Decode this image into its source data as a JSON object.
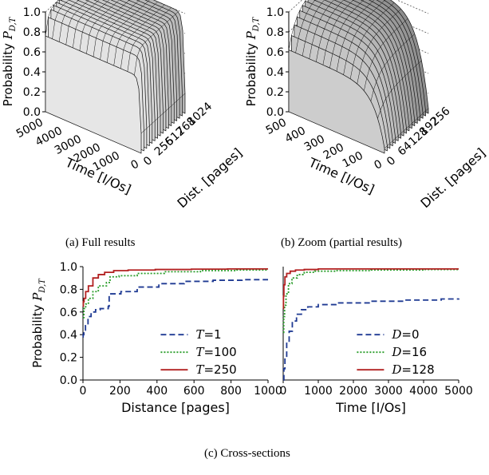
{
  "chart_data": [
    {
      "type": "surface",
      "caption": "(a)  Full results",
      "zlabel": "Probability",
      "zlabel_symbol": "P",
      "zlabel_sub": "D,T",
      "xlabel": "Time [I/Os]",
      "ylabel": "Dist. [pages]",
      "zlim": [
        0,
        1
      ],
      "xlim": [
        0,
        5000
      ],
      "ylim": [
        0,
        1024
      ],
      "z_ticks": [
        "0.0",
        "0.2",
        "0.4",
        "0.6",
        "0.8",
        "1.0"
      ],
      "x_ticks": [
        "5000",
        "4000",
        "3000",
        "2000",
        "1000",
        "0"
      ],
      "y_ticks": [
        "0",
        "256",
        "512",
        "768",
        "1024"
      ],
      "grid": true
    },
    {
      "type": "surface",
      "caption": "(b)  Zoom (partial results)",
      "zlabel": "Probability",
      "zlabel_symbol": "P",
      "zlabel_sub": "D,T",
      "xlabel": "Time [I/Os]",
      "ylabel": "Dist. [pages]",
      "zlim": [
        0,
        1
      ],
      "xlim": [
        0,
        500
      ],
      "ylim": [
        0,
        256
      ],
      "z_ticks": [
        "0.0",
        "0.2",
        "0.4",
        "0.6",
        "0.8",
        "1.0"
      ],
      "x_ticks": [
        "500",
        "400",
        "300",
        "200",
        "100",
        "0"
      ],
      "y_ticks": [
        "0",
        "64",
        "128",
        "192",
        "256"
      ],
      "grid": true
    },
    {
      "type": "line",
      "caption": "(c)  Cross-sections",
      "xlabel": "Distance [pages]",
      "ylabel": "Probability",
      "ylabel_symbol": "P",
      "ylabel_sub": "D,T",
      "xlim": [
        0,
        1024
      ],
      "ylim": [
        0,
        1
      ],
      "x_ticks": [
        "0",
        "200",
        "400",
        "600",
        "800",
        "1000"
      ],
      "y_ticks": [
        "0.0",
        "0.2",
        "0.4",
        "0.6",
        "0.8",
        "1.0"
      ],
      "legend_position": "lower-right",
      "series": [
        {
          "name": "T = 1",
          "var": "T",
          "val": "1",
          "color": "#1f3a93",
          "dash": "dashed",
          "x": [
            0,
            1,
            5,
            14,
            28,
            45,
            70,
            95,
            140,
            145,
            210,
            300,
            420,
            560,
            720,
            880,
            1024
          ],
          "y": [
            0.38,
            0.4,
            0.44,
            0.48,
            0.56,
            0.6,
            0.62,
            0.63,
            0.65,
            0.76,
            0.78,
            0.82,
            0.85,
            0.87,
            0.88,
            0.885,
            0.885
          ]
        },
        {
          "name": "T = 100",
          "var": "T",
          "val": "100",
          "color": "#2a9d2a",
          "dash": "dotted",
          "x": [
            0,
            5,
            15,
            30,
            55,
            85,
            130,
            150,
            200,
            300,
            450,
            650,
            850,
            1024
          ],
          "y": [
            0.55,
            0.63,
            0.67,
            0.72,
            0.78,
            0.83,
            0.86,
            0.91,
            0.92,
            0.94,
            0.955,
            0.965,
            0.97,
            0.97
          ]
        },
        {
          "name": "T = 250",
          "var": "T",
          "val": "250",
          "color": "#b22020",
          "dash": "solid",
          "x": [
            0,
            2,
            6,
            15,
            30,
            55,
            85,
            120,
            170,
            250,
            400,
            600,
            800,
            1024
          ],
          "y": [
            0.65,
            0.69,
            0.72,
            0.78,
            0.83,
            0.9,
            0.93,
            0.95,
            0.965,
            0.97,
            0.975,
            0.978,
            0.98,
            0.98
          ]
        }
      ]
    },
    {
      "type": "line",
      "xlabel": "Time [I/Os]",
      "xlim": [
        0,
        5000
      ],
      "ylim": [
        0,
        1
      ],
      "x_ticks": [
        "0",
        "1000",
        "2000",
        "3000",
        "4000",
        "5000"
      ],
      "legend_position": "lower-right",
      "series": [
        {
          "name": "D = 0",
          "var": "D",
          "val": "0",
          "color": "#1f3a93",
          "dash": "dashed",
          "x": [
            5,
            20,
            50,
            100,
            170,
            260,
            380,
            520,
            700,
            1000,
            1500,
            2500,
            3500,
            4500,
            5000
          ],
          "y": [
            0.0,
            0.1,
            0.2,
            0.33,
            0.43,
            0.52,
            0.58,
            0.62,
            0.645,
            0.665,
            0.68,
            0.695,
            0.705,
            0.715,
            0.72
          ]
        },
        {
          "name": "D = 16",
          "var": "D",
          "val": "16",
          "color": "#2a9d2a",
          "dash": "dotted",
          "x": [
            0,
            15,
            40,
            80,
            150,
            250,
            400,
            600,
            900,
            1500,
            2500,
            4000,
            5000
          ],
          "y": [
            0.42,
            0.56,
            0.66,
            0.76,
            0.85,
            0.9,
            0.93,
            0.95,
            0.96,
            0.965,
            0.97,
            0.975,
            0.975
          ]
        },
        {
          "name": "D = 128",
          "var": "D",
          "val": "128",
          "color": "#b22020",
          "dash": "solid",
          "x": [
            0,
            8,
            20,
            50,
            100,
            200,
            350,
            600,
            1000,
            2000,
            3500,
            5000
          ],
          "y": [
            0.63,
            0.74,
            0.84,
            0.91,
            0.94,
            0.96,
            0.97,
            0.975,
            0.98,
            0.98,
            0.98,
            0.98
          ]
        }
      ]
    }
  ]
}
